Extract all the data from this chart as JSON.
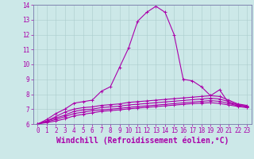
{
  "xlabel": "Windchill (Refroidissement éolien,°C)",
  "xlim": [
    -0.5,
    23.5
  ],
  "ylim": [
    6,
    14
  ],
  "yticks": [
    6,
    7,
    8,
    9,
    10,
    11,
    12,
    13,
    14
  ],
  "xticks": [
    0,
    1,
    2,
    3,
    4,
    5,
    6,
    7,
    8,
    9,
    10,
    11,
    12,
    13,
    14,
    15,
    16,
    17,
    18,
    19,
    20,
    21,
    22,
    23
  ],
  "bg_color": "#cce8e8",
  "line_color": "#aa00aa",
  "grid_color": "#aacccc",
  "spine_color": "#7777aa",
  "lines": [
    [
      6.0,
      6.3,
      6.7,
      7.0,
      7.4,
      7.5,
      7.6,
      8.2,
      8.5,
      9.8,
      11.1,
      12.9,
      13.5,
      13.9,
      13.5,
      12.0,
      9.0,
      8.9,
      8.5,
      7.9,
      8.3,
      7.4,
      7.3,
      7.2
    ],
    [
      6.0,
      6.2,
      6.5,
      6.8,
      7.0,
      7.1,
      7.15,
      7.25,
      7.3,
      7.35,
      7.45,
      7.5,
      7.55,
      7.6,
      7.65,
      7.7,
      7.75,
      7.8,
      7.85,
      7.9,
      7.85,
      7.6,
      7.35,
      7.25
    ],
    [
      6.0,
      6.2,
      6.4,
      6.6,
      6.85,
      6.95,
      7.0,
      7.1,
      7.15,
      7.2,
      7.28,
      7.33,
      7.38,
      7.43,
      7.48,
      7.53,
      7.58,
      7.63,
      7.68,
      7.73,
      7.68,
      7.5,
      7.3,
      7.18
    ],
    [
      6.0,
      6.15,
      6.3,
      6.5,
      6.7,
      6.8,
      6.9,
      6.95,
      7.0,
      7.05,
      7.12,
      7.17,
      7.22,
      7.27,
      7.32,
      7.37,
      7.42,
      7.47,
      7.52,
      7.57,
      7.52,
      7.38,
      7.22,
      7.12
    ],
    [
      6.0,
      6.1,
      6.2,
      6.35,
      6.55,
      6.65,
      6.75,
      6.85,
      6.9,
      6.95,
      7.02,
      7.07,
      7.12,
      7.17,
      7.22,
      7.27,
      7.32,
      7.37,
      7.4,
      7.43,
      7.38,
      7.28,
      7.18,
      7.1
    ]
  ],
  "figsize": [
    3.2,
    2.0
  ],
  "dpi": 100,
  "tick_fontsize": 5.5,
  "xlabel_fontsize": 7.0
}
